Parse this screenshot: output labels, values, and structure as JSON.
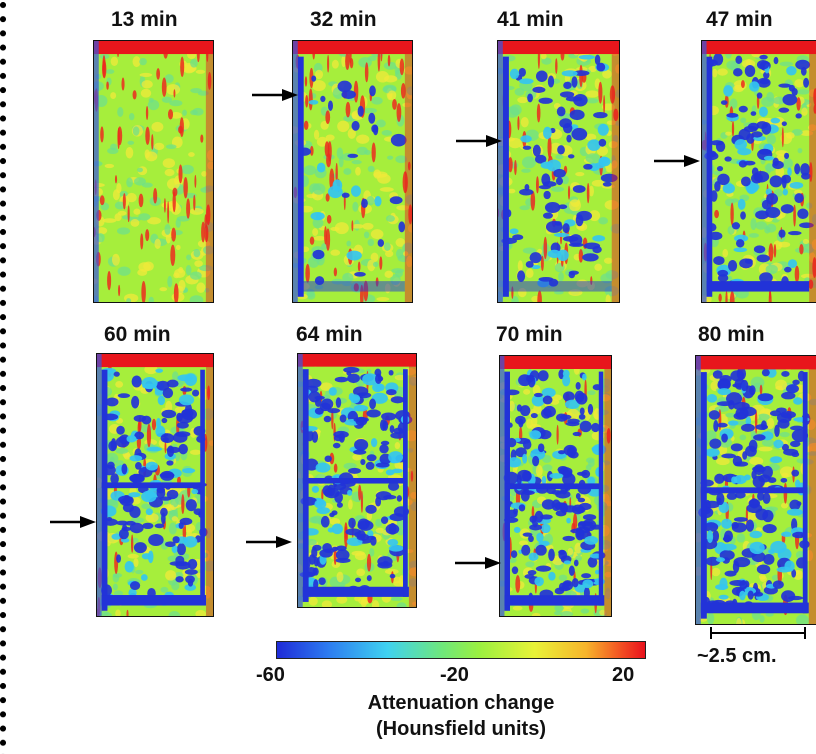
{
  "panels": [
    {
      "label": "13 min"
    },
    {
      "label": "32 min"
    },
    {
      "label": "41 min"
    },
    {
      "label": "47 min"
    },
    {
      "label": "60 min"
    },
    {
      "label": "64 min"
    },
    {
      "label": "70 min"
    },
    {
      "label": "80 min"
    }
  ],
  "colorbar": {
    "min_label": "-60",
    "mid_label": "-20",
    "max_label": "20",
    "title_line1": "Attenuation change",
    "title_line2": "(Hounsfield units)",
    "colors": [
      "#1f2bd8",
      "#3fd2f0",
      "#9bf040",
      "#e8f238",
      "#e8111c"
    ]
  },
  "scalebar": {
    "label": "~2.5 cm."
  }
}
